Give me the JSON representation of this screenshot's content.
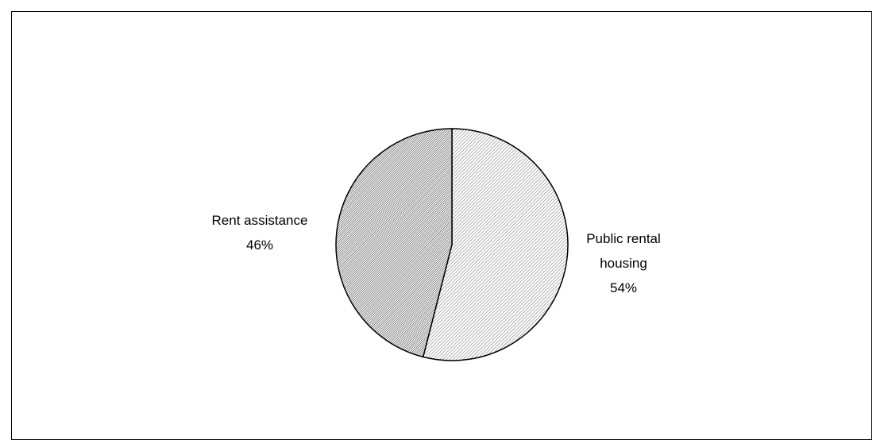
{
  "chart_data": {
    "type": "pie",
    "categories": [
      "Public rental housing",
      "Rent assistance"
    ],
    "values": [
      54,
      46
    ],
    "value_labels": [
      "54%",
      "46%"
    ],
    "colors": [
      "#7f7f7f",
      "#3f3f3f"
    ]
  }
}
